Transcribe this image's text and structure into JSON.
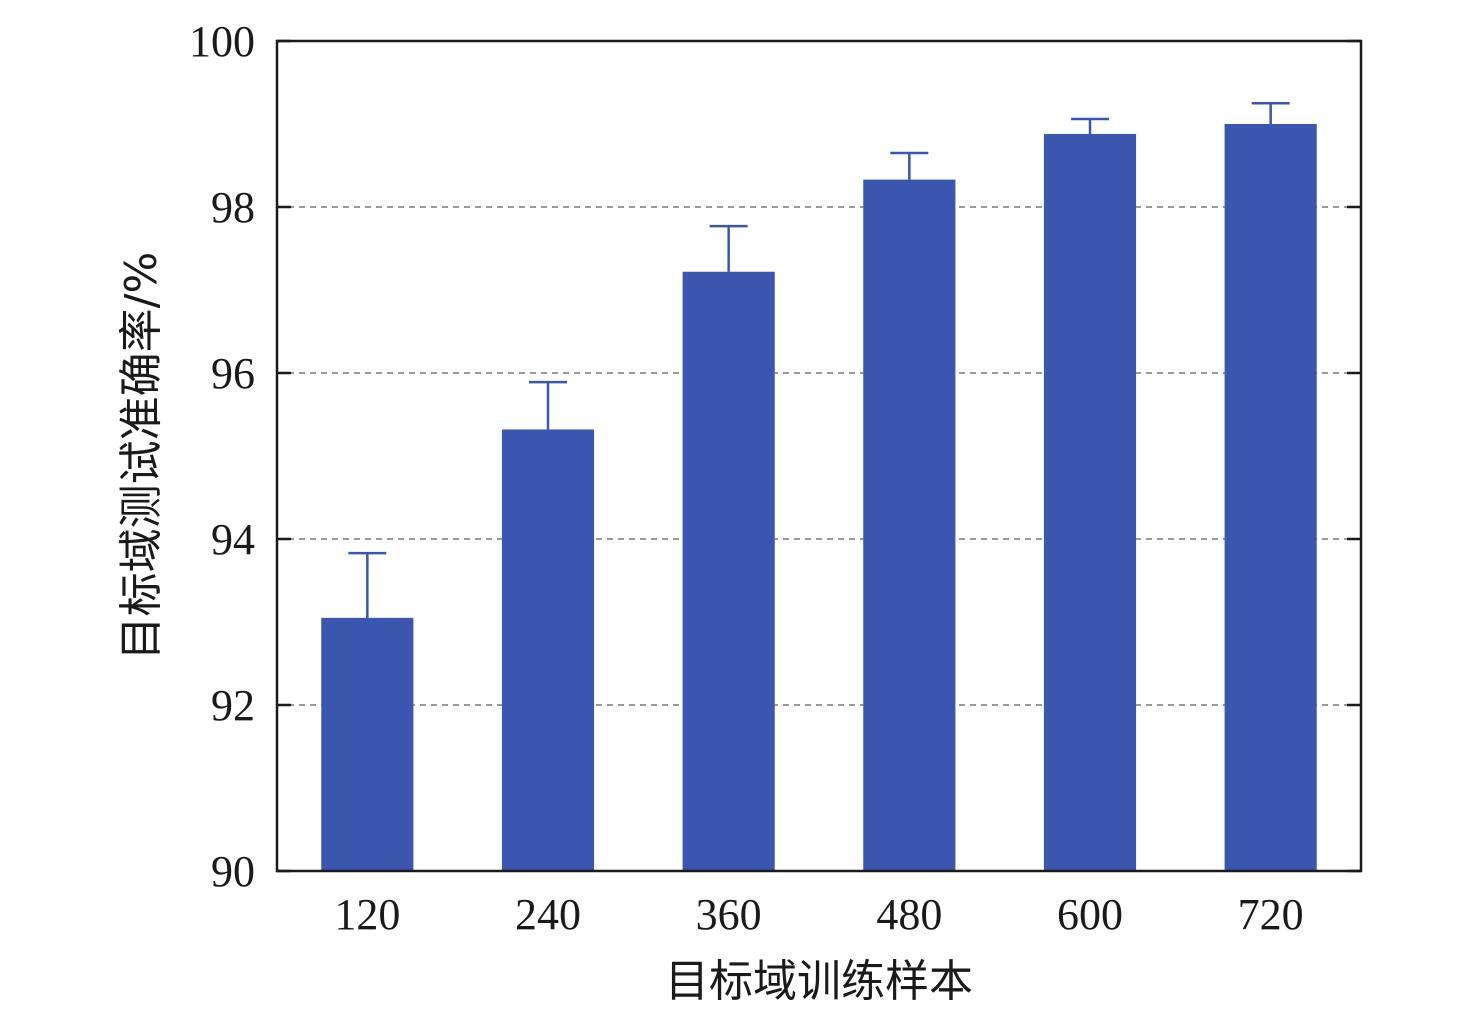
{
  "chart_data": {
    "type": "bar",
    "title": "",
    "xlabel": "目标域训练样本",
    "ylabel": "目标域测试准确率/%",
    "categories": [
      "120",
      "240",
      "360",
      "480",
      "600",
      "720"
    ],
    "values": [
      93.05,
      95.32,
      97.22,
      98.33,
      98.88,
      99.0
    ],
    "error_upper": [
      0.78,
      0.57,
      0.55,
      0.32,
      0.18,
      0.25
    ],
    "ylim": [
      90,
      100
    ],
    "yticks": [
      90,
      92,
      94,
      96,
      98,
      100
    ],
    "grid": "horizontal dashed",
    "bar_color": "#3a56ae",
    "grid_color": "#9a9a9a"
  }
}
